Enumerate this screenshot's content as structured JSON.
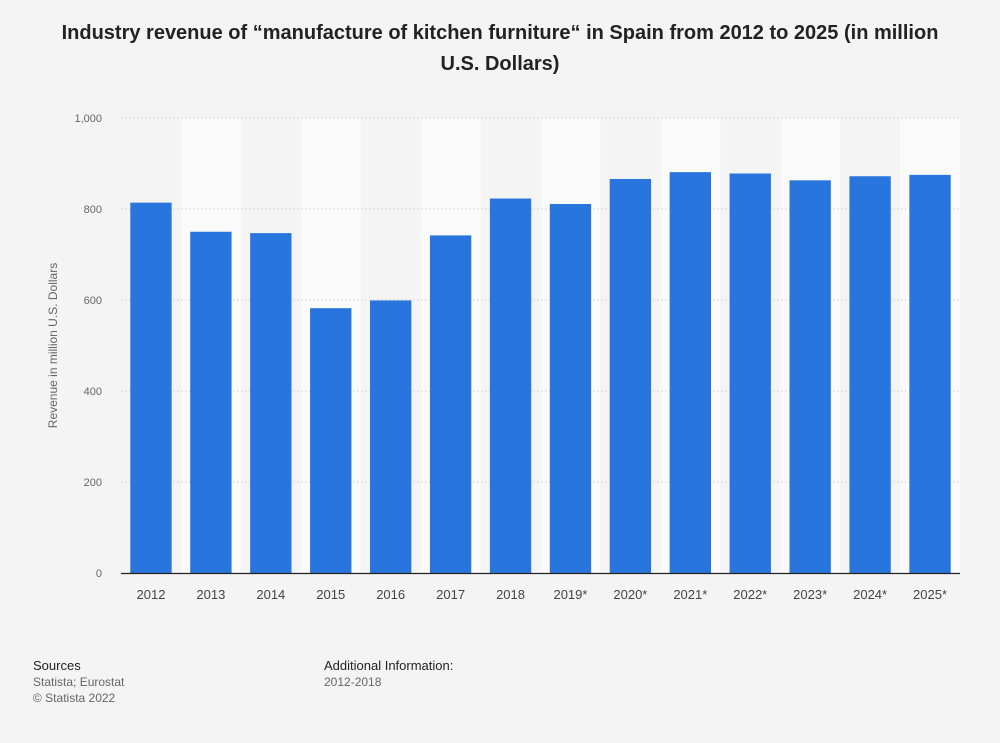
{
  "title": "Industry revenue of “manufacture of kitchen furniture“ in Spain from 2012 to 2025 (in million U.S. Dollars)",
  "chart_data": {
    "type": "bar",
    "title": "Industry revenue of “manufacture of kitchen furniture“ in Spain from 2012 to 2025 (in million U.S. Dollars)",
    "xlabel": "",
    "ylabel": "Revenue in million U.S. Dollars",
    "ylim": [
      0,
      1000
    ],
    "yticks": [
      0,
      200,
      400,
      600,
      800,
      1000
    ],
    "ytick_labels": [
      "0",
      "200",
      "400",
      "600",
      "800",
      "1,000"
    ],
    "grid": true,
    "categories": [
      "2012",
      "2013",
      "2014",
      "2015",
      "2016",
      "2017",
      "2018",
      "2019*",
      "2020*",
      "2021*",
      "2022*",
      "2023*",
      "2024*",
      "2025*"
    ],
    "values": [
      814,
      750,
      747,
      582,
      599,
      742,
      823,
      811,
      866,
      881,
      878,
      863,
      872,
      875
    ],
    "bar_color": "#2876dd"
  },
  "footer": {
    "sources_heading": "Sources",
    "sources_line1": "Statista; Eurostat",
    "sources_line2": "© Statista 2022",
    "additional_heading": "Additional Information:",
    "additional_text": "2012-2018"
  }
}
